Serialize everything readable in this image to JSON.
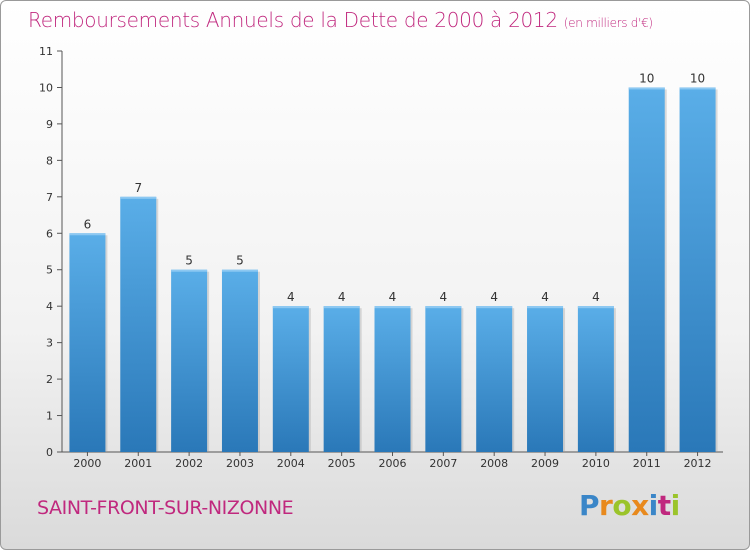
{
  "header": {
    "title": "Remboursements Annuels de la Dette de 2000 à 2012",
    "subtitle": "(en milliers d'€)"
  },
  "footer": {
    "commune": "SAINT-FRONT-SUR-NIZONNE",
    "logo": "Proxiti"
  },
  "colors": {
    "accent": "#c0287e",
    "bar_top": "#5aaee8",
    "bar_bottom": "#2a78b8"
  },
  "chart_data": {
    "type": "bar",
    "title": "Remboursements Annuels de la Dette de 2000 à 2012",
    "subtitle": "(en milliers d'€)",
    "xlabel": "",
    "ylabel": "",
    "categories": [
      "2000",
      "2001",
      "2002",
      "2003",
      "2004",
      "2005",
      "2006",
      "2007",
      "2008",
      "2009",
      "2010",
      "2011",
      "2012"
    ],
    "values": [
      6,
      7,
      5,
      5,
      4,
      4,
      4,
      4,
      4,
      4,
      4,
      10,
      10
    ],
    "ylim": [
      0,
      11
    ],
    "yticks": [
      0,
      1,
      2,
      3,
      4,
      5,
      6,
      7,
      8,
      9,
      10,
      11
    ],
    "grid": false,
    "legend": "none"
  }
}
